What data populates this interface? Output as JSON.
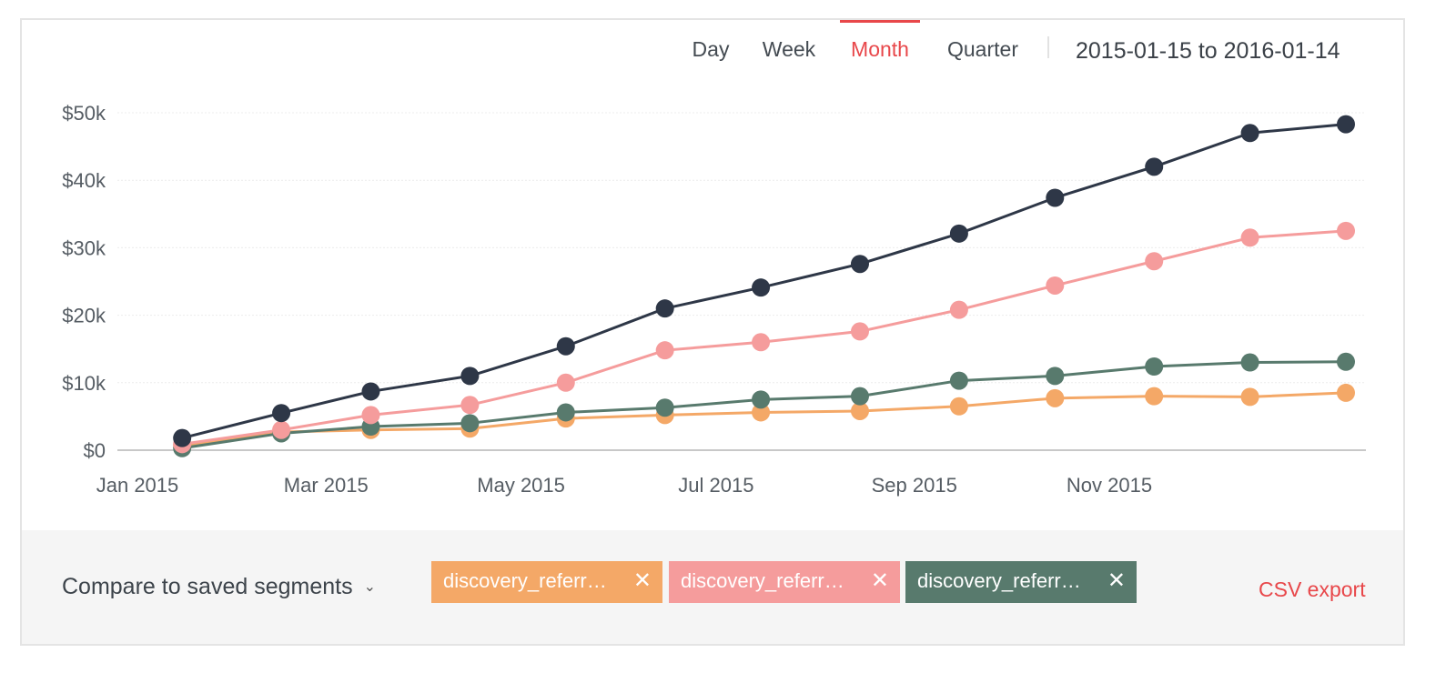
{
  "toolbar": {
    "tabs": [
      {
        "label": "Day"
      },
      {
        "label": "Week"
      },
      {
        "label": "Month"
      },
      {
        "label": "Quarter"
      }
    ],
    "active_tab": "Month",
    "date_range": "2015-01-15 to 2016-01-14"
  },
  "footer": {
    "compare_label": "Compare to saved segments",
    "chips": [
      {
        "label": "discovery_referr…",
        "color": "#f4a867"
      },
      {
        "label": "discovery_referr…",
        "color": "#f59c9c"
      },
      {
        "label": "discovery_referr…",
        "color": "#587a6d"
      }
    ],
    "csv_label": "CSV export"
  },
  "chart_data": {
    "type": "line",
    "x": [
      "2015-01-15",
      "2015-02-15",
      "2015-03-15",
      "2015-04-15",
      "2015-05-15",
      "2015-06-15",
      "2015-07-15",
      "2015-08-15",
      "2015-09-15",
      "2015-10-15",
      "2015-11-15",
      "2015-12-15",
      "2016-01-14"
    ],
    "x_tick_labels": [
      "Jan 2015",
      "Mar 2015",
      "May 2015",
      "Jul 2015",
      "Sep 2015",
      "Nov 2015"
    ],
    "y_tick_labels": [
      "$0",
      "$10k",
      "$20k",
      "$30k",
      "$40k",
      "$50k"
    ],
    "ylim": [
      0,
      50000
    ],
    "grid": true,
    "series": [
      {
        "color": "#2e3747",
        "values": [
          1800,
          5500,
          8700,
          11000,
          15400,
          21000,
          24100,
          27600,
          32100,
          37400,
          42000,
          47000,
          48300
        ]
      },
      {
        "color": "#f59c9c",
        "values": [
          900,
          3000,
          5200,
          6700,
          10000,
          14800,
          16000,
          17600,
          20800,
          24400,
          28000,
          31500,
          32500
        ]
      },
      {
        "color": "#587a6d",
        "values": [
          300,
          2500,
          3500,
          4000,
          5600,
          6300,
          7500,
          8000,
          10300,
          11000,
          12400,
          13000,
          13100
        ]
      },
      {
        "color": "#f4a867",
        "values": [
          700,
          2700,
          3000,
          3200,
          4700,
          5200,
          5600,
          5800,
          6500,
          7700,
          8000,
          7900,
          8500
        ]
      }
    ]
  }
}
